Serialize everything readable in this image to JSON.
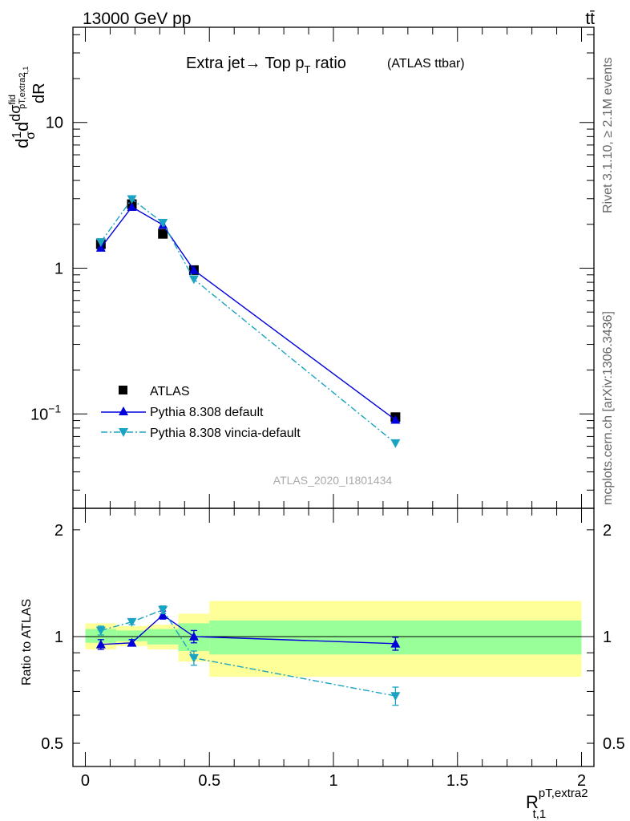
{
  "header": {
    "energy_label": "13000 GeV pp",
    "process_label": "tt̄"
  },
  "side_labels": {
    "rivet": "Rivet 3.1.10, ≥ 2.1M events",
    "source": "mcplots.cern.ch [arXiv:1306.3436]"
  },
  "chart_data": [
    {
      "type": "line",
      "panel": "main",
      "title": "Extra jet→ Top p_T ratio",
      "title_main": "Extra jet",
      "title_mid": " Top p",
      "title_sub": "T",
      "title_tail": " ratio",
      "subtitle": "(ATLAS ttbar)",
      "watermark": "ATLAS_2020_I1801434",
      "ylabel": "d(1/σ)dσ^fid/dR^pT,extra2_t,1",
      "ylabel_parts": {
        "a": "d",
        "b": "1",
        "c": "σ",
        "d": "d",
        "e": "dσ",
        "f": "fid",
        "g": "pT,extra2",
        "h": "t,1",
        "i": "dR"
      },
      "yscale": "log",
      "ylim": [
        0.0225,
        45
      ],
      "xlim": [
        -0.05,
        2.05
      ],
      "yticks": [
        {
          "value": 10,
          "label": "10"
        },
        {
          "value": 1,
          "label": "1"
        },
        {
          "value": 0.1,
          "label": "10",
          "exp": "−1"
        }
      ],
      "legend_position": "lower-left",
      "series": [
        {
          "name": "ATLAS",
          "color": "#000000",
          "marker": "square",
          "line": "none",
          "x": [
            0.0625,
            0.1875,
            0.3125,
            0.4375,
            1.25
          ],
          "y": [
            1.46,
            2.75,
            1.72,
            0.97,
            0.095
          ]
        },
        {
          "name": "Pythia 8.308 default",
          "color": "#0000dd",
          "marker": "triangle-up",
          "line": "solid",
          "x": [
            0.0625,
            0.1875,
            0.3125,
            0.4375,
            1.25
          ],
          "y": [
            1.38,
            2.63,
            1.98,
            0.97,
            0.091
          ]
        },
        {
          "name": "Pythia 8.308 vincia-default",
          "color": "#1aa3c2",
          "marker": "triangle-down",
          "line": "dashdot",
          "x": [
            0.0625,
            0.1875,
            0.3125,
            0.4375,
            1.25
          ],
          "y": [
            1.51,
            2.98,
            2.05,
            0.84,
            0.063
          ]
        }
      ]
    },
    {
      "type": "line",
      "panel": "ratio",
      "ylabel": "Ratio to ATLAS",
      "xlabel": "R^pT,extra2_t,1",
      "xlabel_parts": {
        "base": "R",
        "sup": "pT,extra2",
        "sub": "t,1"
      },
      "yscale": "log",
      "ylim": [
        0.43,
        2.3
      ],
      "xlim": [
        -0.05,
        2.05
      ],
      "yticks": [
        {
          "value": 2,
          "label": "2"
        },
        {
          "value": 1,
          "label": "1"
        },
        {
          "value": 0.5,
          "label": "0.5"
        }
      ],
      "xticks": [
        {
          "value": 0,
          "label": "0"
        },
        {
          "value": 0.5,
          "label": "0.5"
        },
        {
          "value": 1,
          "label": "1"
        },
        {
          "value": 1.5,
          "label": "1.5"
        },
        {
          "value": 2,
          "label": "2"
        }
      ],
      "uncertainty_bands": [
        {
          "x0": 0.0,
          "x1": 0.125,
          "inner": [
            0.96,
            1.05
          ],
          "outer": [
            0.92,
            1.09
          ]
        },
        {
          "x0": 0.125,
          "x1": 0.25,
          "inner": [
            0.97,
            1.04
          ],
          "outer": [
            0.94,
            1.07
          ]
        },
        {
          "x0": 0.25,
          "x1": 0.375,
          "inner": [
            0.95,
            1.05
          ],
          "outer": [
            0.92,
            1.08
          ]
        },
        {
          "x0": 0.375,
          "x1": 0.5,
          "inner": [
            0.91,
            1.09
          ],
          "outer": [
            0.85,
            1.16
          ]
        },
        {
          "x0": 0.5,
          "x1": 2.0,
          "inner": [
            0.89,
            1.11
          ],
          "outer": [
            0.77,
            1.26
          ]
        }
      ],
      "band_colors": {
        "inner": "#99ff99",
        "outer": "#ffff99"
      },
      "series": [
        {
          "name": "Pythia 8.308 default",
          "color": "#0000dd",
          "marker": "triangle-up",
          "line": "solid",
          "x": [
            0.0625,
            0.1875,
            0.3125,
            0.4375,
            1.25
          ],
          "y": [
            0.95,
            0.96,
            1.15,
            1.0,
            0.955
          ],
          "err": [
            0.03,
            0.02,
            0.03,
            0.04,
            0.04
          ]
        },
        {
          "name": "Pythia 8.308 vincia-default",
          "color": "#1aa3c2",
          "marker": "triangle-down",
          "line": "dashdot",
          "x": [
            0.0625,
            0.1875,
            0.3125,
            0.4375,
            1.25
          ],
          "y": [
            1.04,
            1.1,
            1.19,
            0.87,
            0.68
          ],
          "err": [
            0.03,
            0.02,
            0.03,
            0.04,
            0.04
          ]
        }
      ]
    }
  ]
}
